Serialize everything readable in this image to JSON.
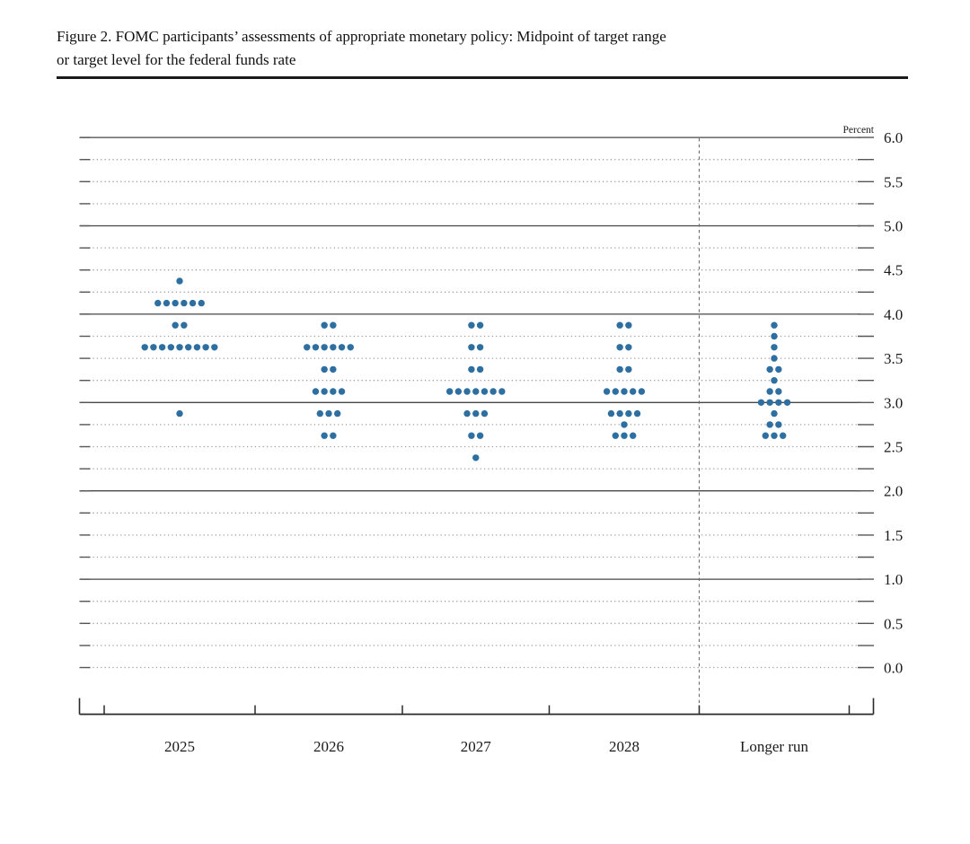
{
  "figure": {
    "title": "Figure 2. FOMC participants' assessments of appropriate monetary policy: Midpoint of target range or target level for the federal funds rate",
    "title_lines": [
      "Figure 2. FOMC participants’ assessments of appropriate monetary policy: Midpoint of target range",
      "or target level for the federal funds rate"
    ]
  },
  "chart_data": {
    "type": "scatter",
    "subtype": "fomc-dot-plot",
    "title": "Figure 2. FOMC participants' assessments of appropriate monetary policy: Midpoint of target range or target level for the federal funds rate",
    "unit_label": "Percent",
    "y_axis": {
      "min": 0.0,
      "max": 6.0,
      "label_step": 0.5,
      "grid_step": 0.25,
      "tick_labels": [
        "6.0",
        "5.5",
        "5.0",
        "4.5",
        "4.0",
        "3.5",
        "3.0",
        "2.5",
        "2.0",
        "1.5",
        "1.0",
        "0.5",
        "0.0"
      ],
      "solid_gridlines": [
        6.0,
        5.0,
        4.0,
        3.0,
        2.0,
        1.0
      ],
      "grid": true
    },
    "x_axis": {
      "categories": [
        "2025",
        "2026",
        "2027",
        "2028",
        "Longer run"
      ]
    },
    "separator_before_category": "Longer run",
    "dot_color": "#2d6fa1",
    "series": [
      {
        "category": "2025",
        "dots": [
          {
            "rate": 4.375,
            "count": 1
          },
          {
            "rate": 4.125,
            "count": 6
          },
          {
            "rate": 3.875,
            "count": 2
          },
          {
            "rate": 3.625,
            "count": 9
          },
          {
            "rate": 2.875,
            "count": 1
          }
        ]
      },
      {
        "category": "2026",
        "dots": [
          {
            "rate": 3.875,
            "count": 2
          },
          {
            "rate": 3.625,
            "count": 6
          },
          {
            "rate": 3.375,
            "count": 2
          },
          {
            "rate": 3.125,
            "count": 4
          },
          {
            "rate": 2.875,
            "count": 3
          },
          {
            "rate": 2.625,
            "count": 2
          }
        ]
      },
      {
        "category": "2027",
        "dots": [
          {
            "rate": 3.875,
            "count": 2
          },
          {
            "rate": 3.625,
            "count": 2
          },
          {
            "rate": 3.375,
            "count": 2
          },
          {
            "rate": 3.125,
            "count": 7
          },
          {
            "rate": 2.875,
            "count": 3
          },
          {
            "rate": 2.625,
            "count": 2
          },
          {
            "rate": 2.375,
            "count": 1
          }
        ]
      },
      {
        "category": "2028",
        "dots": [
          {
            "rate": 3.875,
            "count": 2
          },
          {
            "rate": 3.625,
            "count": 2
          },
          {
            "rate": 3.375,
            "count": 2
          },
          {
            "rate": 3.125,
            "count": 5
          },
          {
            "rate": 2.875,
            "count": 4
          },
          {
            "rate": 2.75,
            "count": 1
          },
          {
            "rate": 2.625,
            "count": 3
          }
        ]
      },
      {
        "category": "Longer run",
        "dots": [
          {
            "rate": 3.875,
            "count": 1
          },
          {
            "rate": 3.75,
            "count": 1
          },
          {
            "rate": 3.625,
            "count": 1
          },
          {
            "rate": 3.5,
            "count": 1
          },
          {
            "rate": 3.375,
            "count": 2
          },
          {
            "rate": 3.25,
            "count": 1
          },
          {
            "rate": 3.125,
            "count": 2
          },
          {
            "rate": 3.0,
            "count": 4
          },
          {
            "rate": 2.875,
            "count": 1
          },
          {
            "rate": 2.75,
            "count": 2
          },
          {
            "rate": 2.625,
            "count": 3
          }
        ]
      }
    ]
  },
  "colors": {
    "dot": "#2d6fa1",
    "solid_gridline": "#474747",
    "dotted_gridline": "#9b9b9b",
    "axis": "#2a2a2a",
    "separator": "#6b6b6b",
    "text": "#1a1a1a"
  }
}
